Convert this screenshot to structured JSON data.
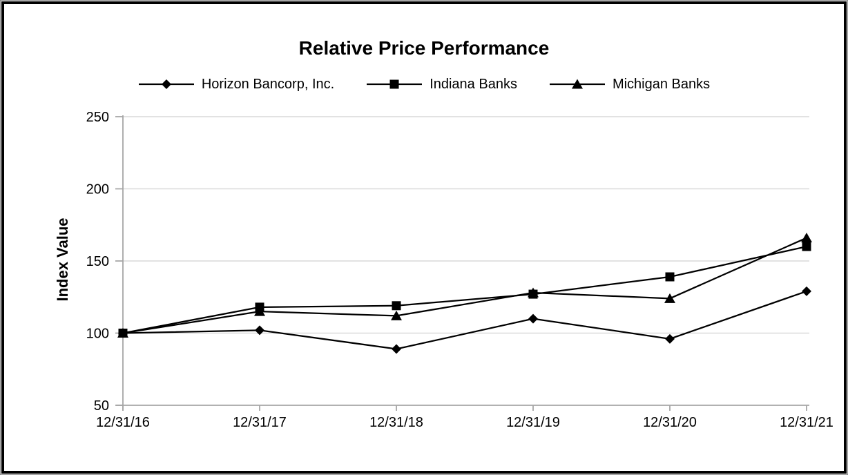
{
  "page": {
    "background_color": "#ffffff",
    "border_color": "#000000"
  },
  "chart_data": {
    "type": "line",
    "title": "Relative Price Performance",
    "xlabel": "",
    "ylabel": "Index Value",
    "ylim": [
      50,
      250
    ],
    "yticks": [
      50,
      100,
      150,
      200,
      250
    ],
    "grid": true,
    "legend_position": "top",
    "categories": [
      "12/31/16",
      "12/31/17",
      "12/31/18",
      "12/31/19",
      "12/31/20",
      "12/31/21"
    ],
    "series": [
      {
        "name": "Horizon Bancorp, Inc.",
        "marker": "diamond",
        "color": "#000000",
        "values": [
          100,
          102,
          89,
          110,
          96,
          129
        ]
      },
      {
        "name": "Indiana Banks",
        "marker": "square",
        "color": "#000000",
        "values": [
          100,
          118,
          119,
          127,
          139,
          160
        ]
      },
      {
        "name": "Michigan Banks",
        "marker": "triangle",
        "color": "#000000",
        "values": [
          100,
          115,
          112,
          128,
          124,
          166
        ]
      }
    ],
    "colors": {
      "axis": "#a6a6a6",
      "gridline": "#d9d9d9",
      "text": "#000000",
      "series_line": "#000000"
    }
  }
}
